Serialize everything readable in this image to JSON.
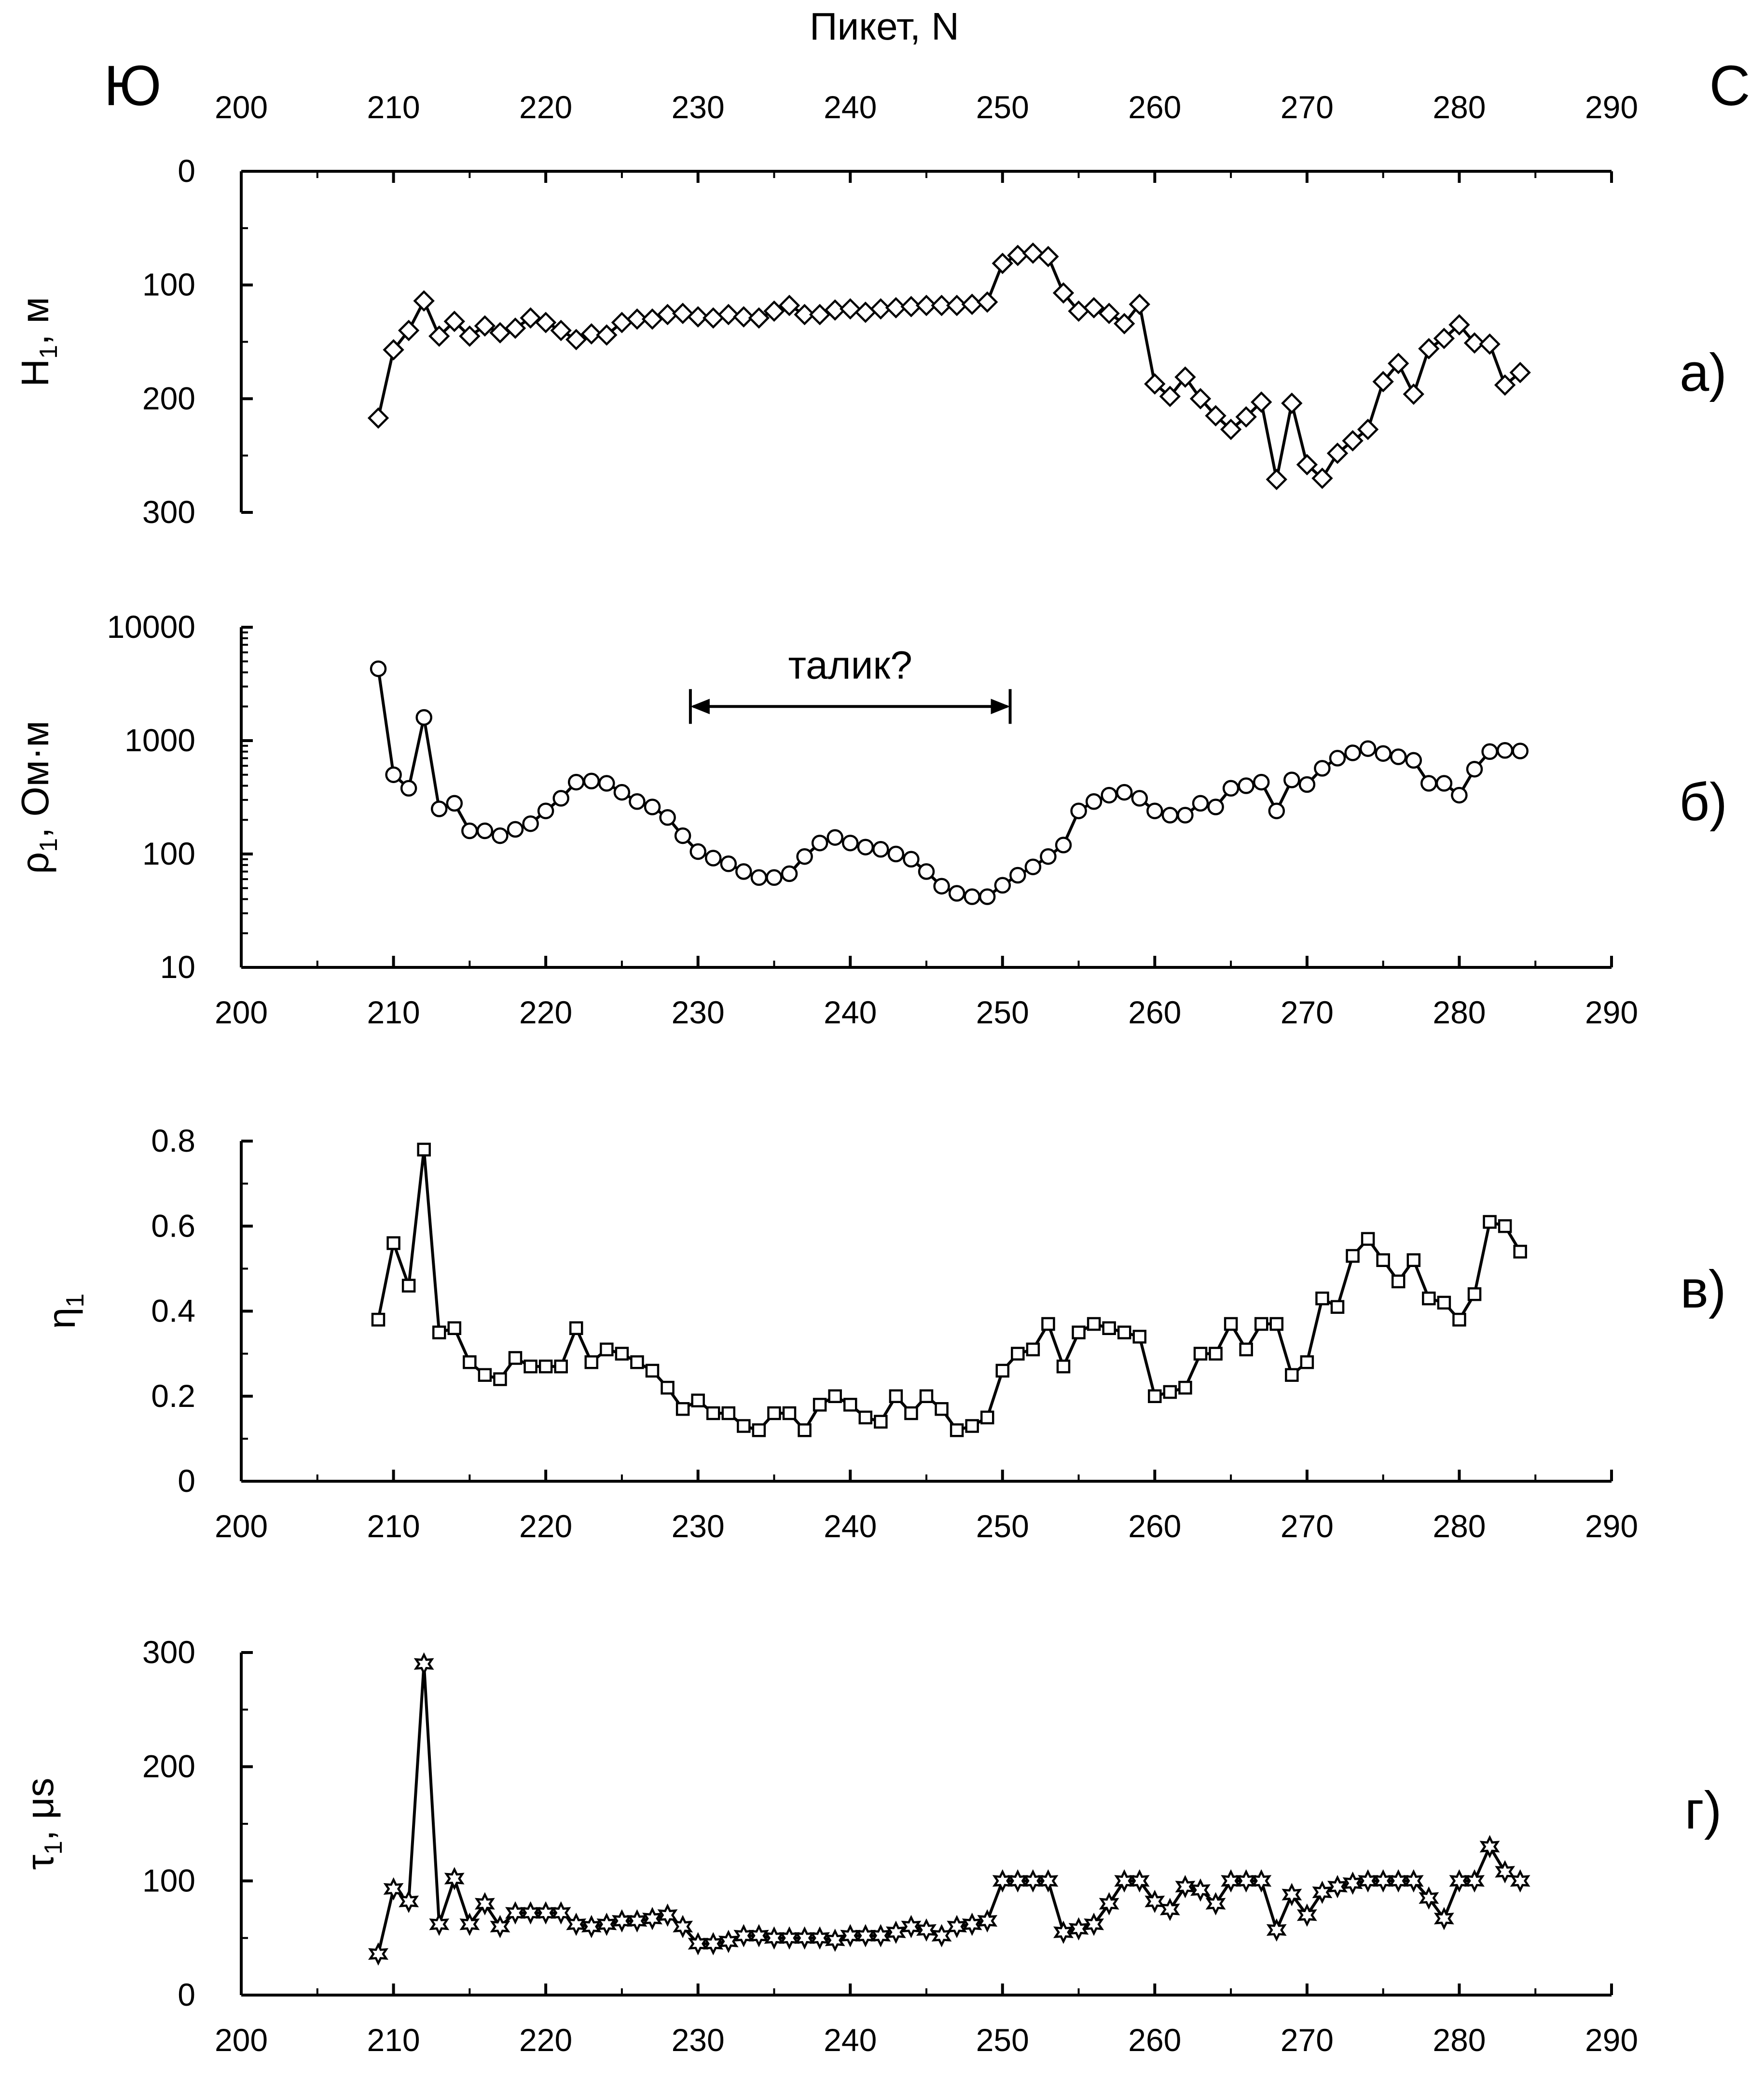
{
  "figure": {
    "top_axis_label": "Пикет,  N",
    "left_direction": "Ю",
    "right_direction": "С",
    "colors": {
      "line": "#000000",
      "marker_fill": "#ffffff",
      "background": "#ffffff"
    }
  },
  "chart_data": [
    {
      "type": "line",
      "panel_label": "а)",
      "ylabel": "H",
      "ylabel_sub": "1",
      "ylabel_unit": ", м",
      "marker": "diamond",
      "y_inverted": true,
      "xlim": [
        200,
        290
      ],
      "ylim": [
        0,
        300
      ],
      "x_ticks": [
        200,
        210,
        220,
        230,
        240,
        250,
        260,
        270,
        280,
        290
      ],
      "x_tick_labels": [
        "200",
        "210",
        "220",
        "230",
        "240",
        "250",
        "260",
        "270",
        "280",
        "290"
      ],
      "x_tick_position": "top",
      "y_ticks": [
        0,
        100,
        200,
        300
      ],
      "y_tick_labels": [
        "0",
        "100",
        "200",
        "300"
      ],
      "series": [
        {
          "x": [
            209,
            210,
            211,
            212,
            213,
            214,
            215,
            216,
            217,
            218,
            219,
            220,
            221,
            222,
            223,
            224,
            225,
            226,
            227,
            228,
            229,
            230,
            231,
            232,
            233,
            234,
            235,
            236,
            237,
            238,
            239,
            240,
            241,
            242,
            243,
            244,
            245,
            246,
            247,
            248,
            249,
            250,
            251,
            252,
            253,
            254,
            255,
            256,
            257,
            258,
            259,
            260,
            261,
            262,
            263,
            264,
            265,
            266,
            267,
            268,
            269,
            270,
            271,
            272,
            273,
            274,
            275,
            276,
            277,
            278,
            279,
            280,
            281,
            282,
            283,
            284
          ],
          "y": [
            217,
            157,
            140,
            114,
            145,
            132,
            145,
            136,
            142,
            138,
            129,
            133,
            140,
            148,
            143,
            144,
            133,
            130,
            130,
            126,
            125,
            128,
            129,
            126,
            128,
            129,
            123,
            118,
            126,
            126,
            122,
            121,
            124,
            121,
            120,
            119,
            118,
            118,
            118,
            117,
            115,
            81,
            74,
            72,
            75,
            107,
            123,
            120,
            125,
            134,
            117,
            187,
            198,
            181,
            200,
            215,
            227,
            216,
            203,
            271,
            204,
            258,
            270,
            248,
            237,
            227,
            185,
            169,
            196,
            156,
            147,
            135,
            151,
            152,
            188,
            177
          ]
        }
      ]
    },
    {
      "type": "line",
      "panel_label": "б)",
      "ylabel": "ρ",
      "ylabel_sub": "1",
      "ylabel_unit": ", Ом·м",
      "marker": "circle",
      "y_scale": "log",
      "xlim": [
        200,
        290
      ],
      "ylim": [
        10,
        10000
      ],
      "x_ticks": [
        200,
        210,
        220,
        230,
        240,
        250,
        260,
        270,
        280,
        290
      ],
      "x_tick_labels": [
        "200",
        "210",
        "220",
        "230",
        "240",
        "250",
        "260",
        "270",
        "280",
        "290"
      ],
      "y_ticks": [
        10,
        100,
        1000,
        10000
      ],
      "y_tick_labels": [
        "10",
        "100",
        "1000",
        "10000"
      ],
      "annotation": {
        "text": "талик?",
        "x_from": 229.5,
        "x_to": 250.5,
        "y": 2000
      },
      "series": [
        {
          "x": [
            209,
            210,
            211,
            212,
            213,
            214,
            215,
            216,
            217,
            218,
            219,
            220,
            221,
            222,
            223,
            224,
            225,
            226,
            227,
            228,
            229,
            230,
            231,
            232,
            233,
            234,
            235,
            236,
            237,
            238,
            239,
            240,
            241,
            242,
            243,
            244,
            245,
            246,
            247,
            248,
            249,
            250,
            251,
            252,
            253,
            254,
            255,
            256,
            257,
            258,
            259,
            260,
            261,
            262,
            263,
            264,
            265,
            266,
            267,
            268,
            269,
            270,
            271,
            272,
            273,
            274,
            275,
            276,
            277,
            278,
            279,
            280,
            281,
            282,
            283,
            284
          ],
          "y": [
            4300,
            500,
            380,
            1600,
            250,
            280,
            160,
            160,
            145,
            165,
            185,
            240,
            310,
            430,
            440,
            420,
            350,
            290,
            260,
            210,
            145,
            105,
            92,
            82,
            70,
            62,
            62,
            67,
            95,
            125,
            140,
            125,
            115,
            110,
            100,
            90,
            70,
            52,
            45,
            42,
            42,
            53,
            65,
            77,
            95,
            120,
            240,
            290,
            330,
            350,
            310,
            240,
            220,
            220,
            280,
            260,
            380,
            400,
            430,
            240,
            450,
            410,
            570,
            700,
            780,
            850,
            770,
            720,
            670,
            420,
            420,
            330,
            560,
            800,
            820,
            810
          ]
        }
      ]
    },
    {
      "type": "line",
      "panel_label": "в)",
      "ylabel": "η",
      "ylabel_sub": "1",
      "ylabel_unit": "",
      "marker": "square",
      "xlim": [
        200,
        290
      ],
      "ylim": [
        0,
        0.8
      ],
      "x_ticks": [
        200,
        210,
        220,
        230,
        240,
        250,
        260,
        270,
        280,
        290
      ],
      "x_tick_labels": [
        "200",
        "210",
        "220",
        "230",
        "240",
        "250",
        "260",
        "270",
        "280",
        "290"
      ],
      "y_ticks": [
        0,
        0.2,
        0.4,
        0.6,
        0.8
      ],
      "y_tick_labels": [
        "0",
        "0.2",
        "0.4",
        "0.6",
        "0.8"
      ],
      "series": [
        {
          "x": [
            209,
            210,
            211,
            212,
            213,
            214,
            215,
            216,
            217,
            218,
            219,
            220,
            221,
            222,
            223,
            224,
            225,
            226,
            227,
            228,
            229,
            230,
            231,
            232,
            233,
            234,
            235,
            236,
            237,
            238,
            239,
            240,
            241,
            242,
            243,
            244,
            245,
            246,
            247,
            248,
            249,
            250,
            251,
            252,
            253,
            254,
            255,
            256,
            257,
            258,
            259,
            260,
            261,
            262,
            263,
            264,
            265,
            266,
            267,
            268,
            269,
            270,
            271,
            272,
            273,
            274,
            275,
            276,
            277,
            278,
            279,
            280,
            281,
            282,
            283,
            284
          ],
          "y": [
            0.38,
            0.56,
            0.46,
            0.78,
            0.35,
            0.36,
            0.28,
            0.25,
            0.24,
            0.29,
            0.27,
            0.27,
            0.27,
            0.36,
            0.28,
            0.31,
            0.3,
            0.28,
            0.26,
            0.22,
            0.17,
            0.19,
            0.16,
            0.16,
            0.13,
            0.12,
            0.16,
            0.16,
            0.12,
            0.18,
            0.2,
            0.18,
            0.15,
            0.14,
            0.2,
            0.16,
            0.2,
            0.17,
            0.12,
            0.13,
            0.15,
            0.26,
            0.3,
            0.31,
            0.37,
            0.27,
            0.35,
            0.37,
            0.36,
            0.35,
            0.34,
            0.2,
            0.21,
            0.22,
            0.3,
            0.3,
            0.37,
            0.31,
            0.37,
            0.37,
            0.25,
            0.28,
            0.43,
            0.41,
            0.53,
            0.57,
            0.52,
            0.47,
            0.52,
            0.43,
            0.42,
            0.38,
            0.44,
            0.61,
            0.6,
            0.54
          ]
        }
      ]
    },
    {
      "type": "line",
      "panel_label": "г)",
      "ylabel": "τ",
      "ylabel_sub": "1",
      "ylabel_unit": ",  μs",
      "marker": "star",
      "xlim": [
        200,
        290
      ],
      "ylim": [
        0,
        300
      ],
      "x_ticks": [
        200,
        210,
        220,
        230,
        240,
        250,
        260,
        270,
        280,
        290
      ],
      "x_tick_labels": [
        "200",
        "210",
        "220",
        "230",
        "240",
        "250",
        "260",
        "270",
        "280",
        "290"
      ],
      "y_ticks": [
        0,
        100,
        200,
        300
      ],
      "y_tick_labels": [
        "0",
        "100",
        "200",
        "300"
      ],
      "series": [
        {
          "x": [
            209,
            210,
            211,
            212,
            213,
            214,
            215,
            216,
            217,
            218,
            219,
            220,
            221,
            222,
            223,
            224,
            225,
            226,
            227,
            228,
            229,
            230,
            231,
            232,
            233,
            234,
            235,
            236,
            237,
            238,
            239,
            240,
            241,
            242,
            243,
            244,
            245,
            246,
            247,
            248,
            249,
            250,
            251,
            252,
            253,
            254,
            255,
            256,
            257,
            258,
            259,
            260,
            261,
            262,
            263,
            264,
            265,
            266,
            267,
            268,
            269,
            270,
            271,
            272,
            273,
            274,
            275,
            276,
            277,
            278,
            279,
            280,
            281,
            282,
            283,
            284
          ],
          "y": [
            36,
            93,
            82,
            290,
            62,
            102,
            62,
            80,
            60,
            72,
            72,
            72,
            72,
            62,
            60,
            62,
            65,
            65,
            67,
            70,
            60,
            45,
            45,
            47,
            52,
            52,
            50,
            50,
            50,
            50,
            48,
            52,
            52,
            52,
            55,
            60,
            57,
            52,
            60,
            62,
            65,
            100,
            100,
            100,
            100,
            55,
            58,
            62,
            80,
            100,
            100,
            82,
            75,
            95,
            92,
            80,
            100,
            100,
            100,
            57,
            88,
            70,
            90,
            95,
            98,
            100,
            100,
            100,
            100,
            85,
            67,
            100,
            100,
            130,
            108,
            100
          ]
        }
      ]
    }
  ]
}
